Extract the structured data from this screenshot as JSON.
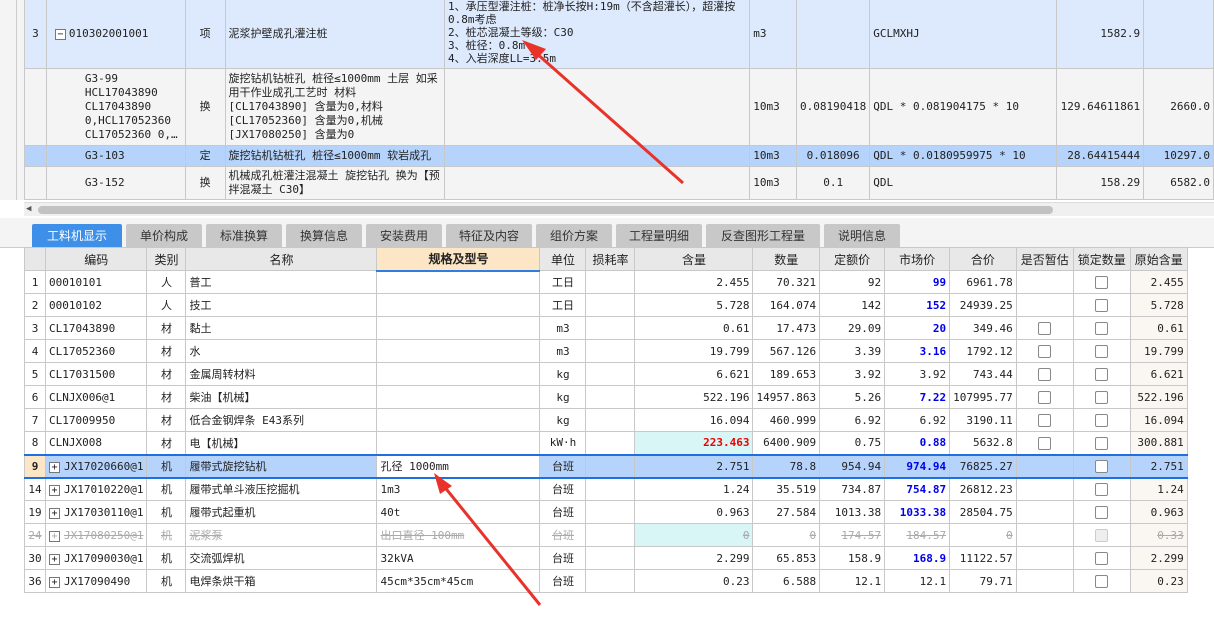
{
  "top_grid": {
    "rows": [
      {
        "no": "3",
        "code": "010302001001",
        "type": "项",
        "name": "泥浆护壁成孔灌注桩",
        "feature": "1、承压型灌注桩：桩净长按H:19m（不含超灌长），超灌按0.8m考虑\n2、桩芯混凝土等级：C30\n3、桩径：0.8m\n4、入岩深度LL=3.5m",
        "unit": "m3",
        "qty_coef": "",
        "qty_expr": "GCLMXHJ",
        "qty": "1582.9",
        "price": ""
      },
      {
        "no": "",
        "code": "G3-99\nHCL17043890\nCL17043890\n0,HCL17052360\nCL17052360 0,…",
        "type": "换",
        "name": "旋挖钻机钻桩孔 桩径≤1000mm 土层  如采用干作业成孔工艺时 材料\n[CL17043890] 含量为0,材料\n[CL17052360] 含量为0,机械\n[JX17080250] 含量为0",
        "feature": "",
        "unit": "10m3",
        "qty_coef": "0.08190418",
        "qty_expr": "QDL * 0.081904175 * 10",
        "qty": "129.64611861",
        "price": "2660.0"
      },
      {
        "no": "",
        "code": "G3-103",
        "type": "定",
        "name": "旋挖钻机钻桩孔 桩径≤1000mm 软岩成孔",
        "feature": "",
        "unit": "10m3",
        "qty_coef": "0.018096",
        "qty_expr": "QDL * 0.0180959975 * 10",
        "qty": "28.64415444",
        "price": "10297.0"
      },
      {
        "no": "",
        "code": "G3-152",
        "type": "换",
        "name": "机械成孔桩灌注混凝土 旋挖钻孔  换为【预拌混凝土 C30】",
        "feature": "",
        "unit": "10m3",
        "qty_coef": "0.1",
        "qty_expr": "QDL",
        "qty": "158.29",
        "price": "6582.0"
      }
    ]
  },
  "tabs": [
    "工料机显示",
    "单价构成",
    "标准换算",
    "换算信息",
    "安装费用",
    "特征及内容",
    "组价方案",
    "工程量明细",
    "反查图形工程量",
    "说明信息"
  ],
  "columns": [
    "",
    "编码",
    "类别",
    "名称",
    "规格及型号",
    "单位",
    "损耗率",
    "含量",
    "数量",
    "定额价",
    "市场价",
    "合价",
    "是否暂估",
    "锁定数量",
    "原始含量"
  ],
  "rows": [
    {
      "no": "1",
      "code": "00010101",
      "cat": "人",
      "name": "普工",
      "spec": "",
      "unit": "工日",
      "loss": "",
      "content": "2.455",
      "qty": "70.321",
      "quota": "92",
      "market": "99",
      "total": "6961.78",
      "est": null,
      "lock": false,
      "orig": "2.455"
    },
    {
      "no": "2",
      "code": "00010102",
      "cat": "人",
      "name": "技工",
      "spec": "",
      "unit": "工日",
      "loss": "",
      "content": "5.728",
      "qty": "164.074",
      "quota": "142",
      "market": "152",
      "total": "24939.25",
      "est": null,
      "lock": false,
      "orig": "5.728"
    },
    {
      "no": "3",
      "code": "CL17043890",
      "cat": "材",
      "name": "黏土",
      "spec": "",
      "unit": "m3",
      "loss": "",
      "content": "0.61",
      "qty": "17.473",
      "quota": "29.09",
      "market": "20",
      "total": "349.46",
      "est": false,
      "lock": false,
      "orig": "0.61"
    },
    {
      "no": "4",
      "code": "CL17052360",
      "cat": "材",
      "name": "水",
      "spec": "",
      "unit": "m3",
      "loss": "",
      "content": "19.799",
      "qty": "567.126",
      "quota": "3.39",
      "market": "3.16",
      "total": "1792.12",
      "est": false,
      "lock": false,
      "orig": "19.799"
    },
    {
      "no": "5",
      "code": "CL17031500",
      "cat": "材",
      "name": "金属周转材料",
      "spec": "",
      "unit": "kg",
      "loss": "",
      "content": "6.621",
      "qty": "189.653",
      "quota": "3.92",
      "market": "3.92",
      "total": "743.44",
      "est": false,
      "lock": false,
      "orig": "6.621"
    },
    {
      "no": "6",
      "code": "CLNJX006@1",
      "cat": "材",
      "name": "柴油【机械】",
      "spec": "",
      "unit": "kg",
      "loss": "",
      "content": "522.196",
      "qty": "14957.863",
      "quota": "5.26",
      "market": "7.22",
      "total": "107995.77",
      "est": false,
      "lock": false,
      "orig": "522.196"
    },
    {
      "no": "7",
      "code": "CL17009950",
      "cat": "材",
      "name": "低合金钢焊条 E43系列",
      "spec": "",
      "unit": "kg",
      "loss": "",
      "content": "16.094",
      "qty": "460.999",
      "quota": "6.92",
      "market": "6.92",
      "total": "3190.11",
      "est": false,
      "lock": false,
      "orig": "16.094"
    },
    {
      "no": "8",
      "code": "CLNJX008",
      "cat": "材",
      "name": "电【机械】",
      "spec": "",
      "unit": "kW·h",
      "loss": "",
      "content": "223.463",
      "qty": "6400.909",
      "quota": "0.75",
      "market": "0.88",
      "total": "5632.8",
      "est": false,
      "lock": false,
      "orig": "300.881"
    },
    {
      "no": "9",
      "code": "JX17020660@1",
      "cat": "机",
      "name": "履带式旋挖钻机",
      "spec": "孔径 1000mm",
      "unit": "台班",
      "loss": "",
      "content": "2.751",
      "qty": "78.8",
      "quota": "954.94",
      "market": "974.94",
      "total": "76825.27",
      "est": null,
      "lock": false,
      "orig": "2.751"
    },
    {
      "no": "14",
      "code": "JX17010220@1",
      "cat": "机",
      "name": "履带式单斗液压挖掘机",
      "spec": "1m3",
      "unit": "台班",
      "loss": "",
      "content": "1.24",
      "qty": "35.519",
      "quota": "734.87",
      "market": "754.87",
      "total": "26812.23",
      "est": null,
      "lock": false,
      "orig": "1.24"
    },
    {
      "no": "19",
      "code": "JX17030110@1",
      "cat": "机",
      "name": "履带式起重机",
      "spec": "40t",
      "unit": "台班",
      "loss": "",
      "content": "0.963",
      "qty": "27.584",
      "quota": "1013.38",
      "market": "1033.38",
      "total": "28504.75",
      "est": null,
      "lock": false,
      "orig": "0.963"
    },
    {
      "no": "24",
      "code": "JX17080250@1",
      "cat": "机",
      "name": "泥浆泵",
      "spec": "出口直径 100mm",
      "unit": "台班",
      "loss": "",
      "content": "0",
      "qty": "0",
      "quota": "174.57",
      "market": "184.57",
      "total": "0",
      "est": null,
      "lock": false,
      "orig": "0.33"
    },
    {
      "no": "30",
      "code": "JX17090030@1",
      "cat": "机",
      "name": "交流弧焊机",
      "spec": "32kVA",
      "unit": "台班",
      "loss": "",
      "content": "2.299",
      "qty": "65.853",
      "quota": "158.9",
      "market": "168.9",
      "total": "11122.57",
      "est": null,
      "lock": false,
      "orig": "2.299"
    },
    {
      "no": "36",
      "code": "JX17090490",
      "cat": "机",
      "name": "电焊条烘干箱",
      "spec": "45cm*35cm*45cm",
      "unit": "台班",
      "loss": "",
      "content": "0.23",
      "qty": "6.588",
      "quota": "12.1",
      "market": "12.1",
      "total": "79.71",
      "est": null,
      "lock": false,
      "orig": "0.23"
    }
  ],
  "selected_row": "9",
  "deleted_row": "24",
  "colors": {
    "accent": "#3d8fe8",
    "selection": "#b5d3fb",
    "market_price": "#0000ee",
    "warning": "#ee0000",
    "arrow": "#e8322a"
  }
}
